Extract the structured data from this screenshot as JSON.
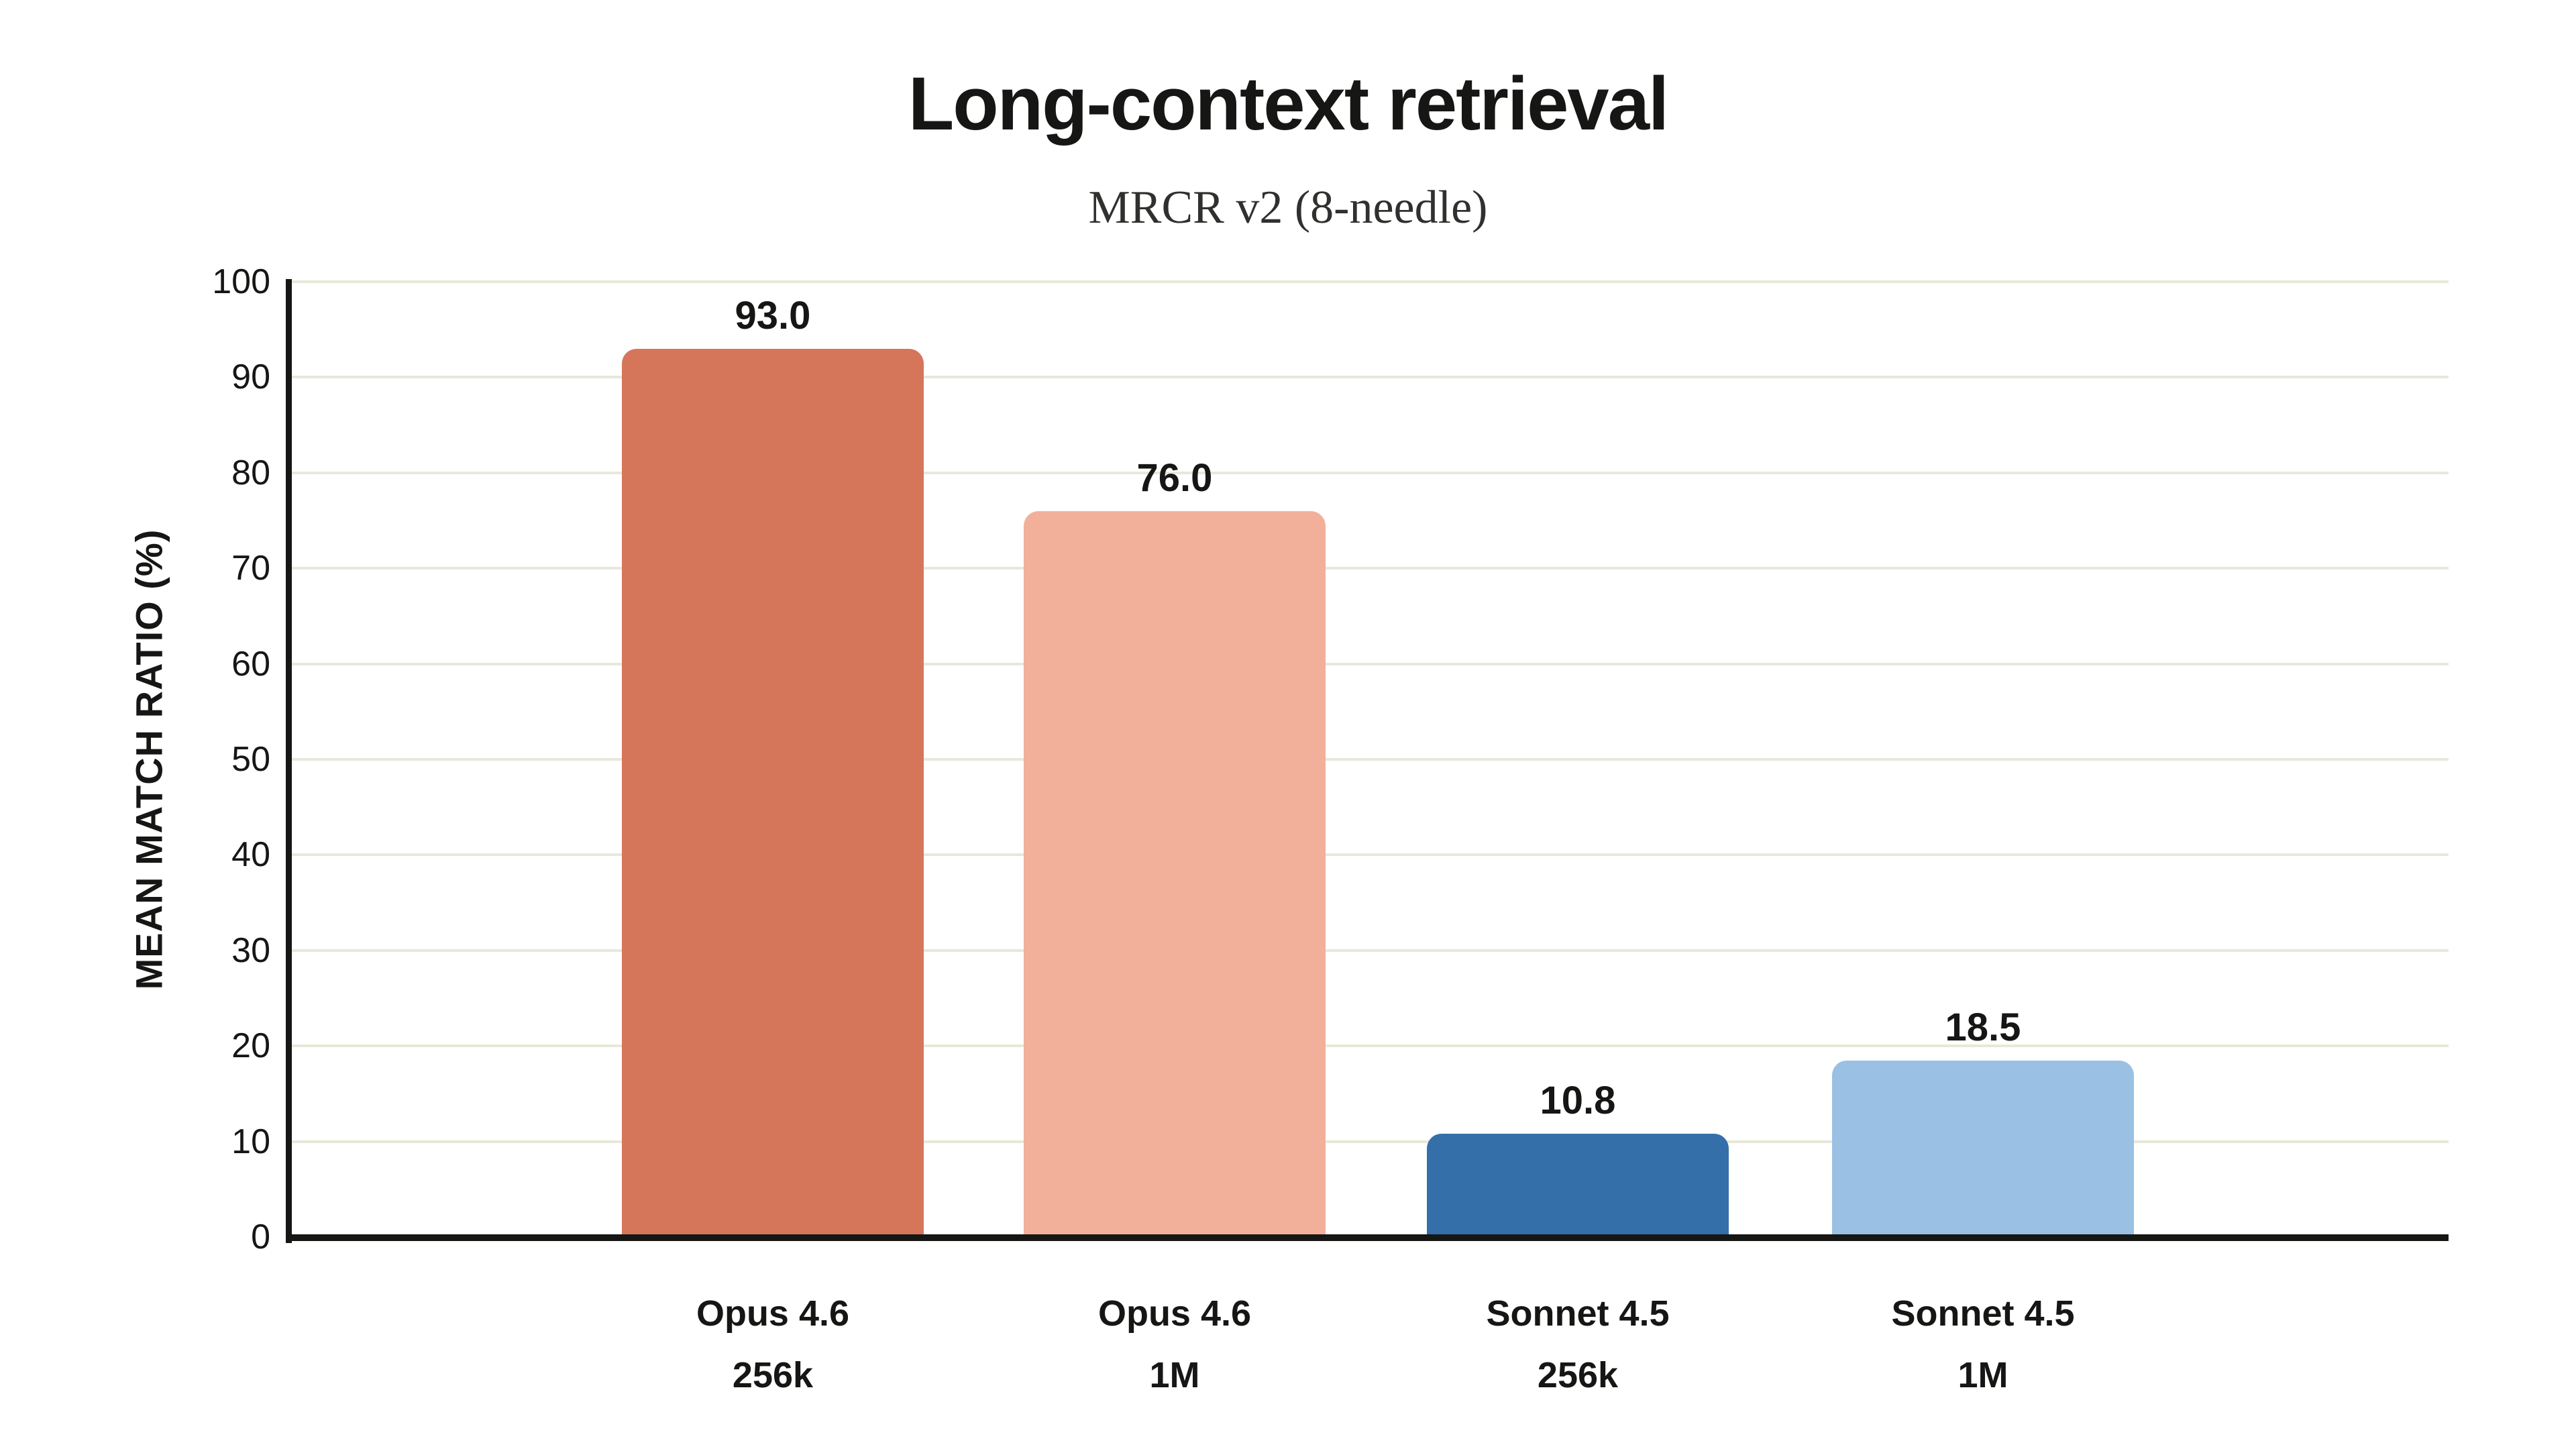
{
  "chart_data": {
    "type": "bar",
    "title": "Long-context retrieval",
    "subtitle": "MRCR v2 (8-needle)",
    "ylabel": "MEAN MATCH RATIO (%)",
    "ylim": [
      0,
      100
    ],
    "yticks": [
      0,
      10,
      20,
      30,
      40,
      50,
      60,
      70,
      80,
      90,
      100
    ],
    "grid": "horizontal",
    "legend": "none",
    "categories": [
      {
        "model": "Opus 4.6",
        "context": "256k"
      },
      {
        "model": "Opus 4.6",
        "context": "1M"
      },
      {
        "model": "Sonnet 4.5",
        "context": "256k"
      },
      {
        "model": "Sonnet 4.5",
        "context": "1M"
      }
    ],
    "values": [
      93.0,
      76.0,
      10.8,
      18.5
    ],
    "value_labels": [
      "93.0",
      "76.0",
      "10.8",
      "18.5"
    ],
    "bar_colors": [
      "#d5765a",
      "#f2b09b",
      "#346fa9",
      "#9ac0e4"
    ],
    "colors": {
      "background": "#ffffff",
      "grid": "#e9e7da",
      "axis": "#161615",
      "text": "#161615",
      "subtitle_text": "#30302e"
    }
  }
}
